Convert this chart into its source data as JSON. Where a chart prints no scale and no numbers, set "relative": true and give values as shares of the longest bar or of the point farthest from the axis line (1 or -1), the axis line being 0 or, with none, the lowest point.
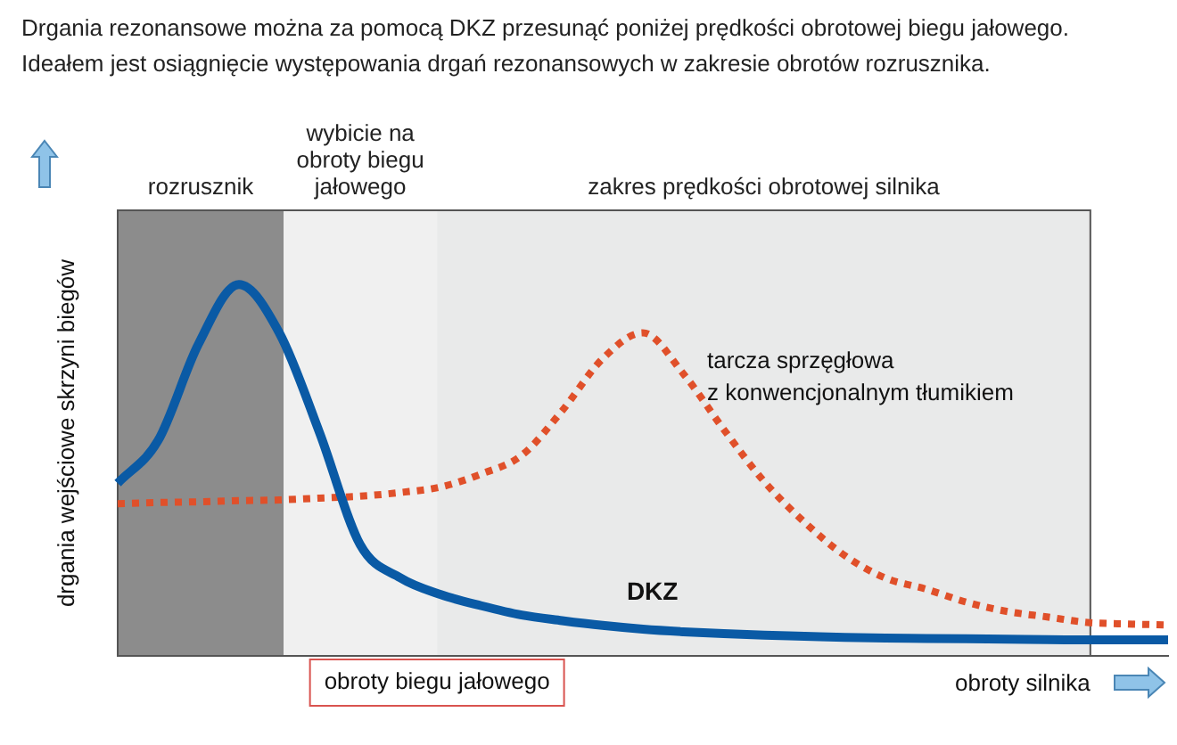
{
  "chart_data": {
    "type": "line",
    "title": "Drgania rezonansowe można za pomocą DKZ przesunąć poniżej prędkości obrotowej biegu jałowego.",
    "subtitle": "Ideałem jest osiągnięcie występowania drgań rezonansowych w zakresie obrotów rozrusznika.",
    "xlabel": "obroty silnika",
    "ylabel": "drgania wejściowe skrzyni biegów",
    "relative": true,
    "legend": false,
    "categories": [
      null,
      null,
      null,
      null,
      null,
      null,
      null,
      null,
      null,
      null,
      null,
      null,
      null,
      null,
      null,
      null,
      null,
      null,
      null,
      null,
      null,
      null,
      null,
      null,
      null,
      null,
      null
    ],
    "series": [
      {
        "name": "DKZ",
        "color": "#0a5aa5",
        "line_style": "solid",
        "values": [
          0.465,
          0.58,
          0.84,
          1,
          0.87,
          0.6,
          0.3,
          0.21,
          0.165,
          0.135,
          0.11,
          0.095,
          0.082,
          0.072,
          0.065,
          0.06,
          0.056,
          0.053,
          0.05,
          0.048,
          0.047,
          0.046,
          0.045,
          0.044,
          0.043,
          0.043,
          0.043
        ]
      },
      {
        "name": "tarcza sprzęgłowa z konwencjonalnym tłumikiem",
        "color": "#e0502a",
        "line_style": "dotted",
        "values": [
          0.41,
          0.413,
          0.415,
          0.418,
          0.42,
          0.425,
          0.43,
          0.44,
          0.455,
          0.49,
          0.54,
          0.66,
          0.8,
          0.87,
          0.76,
          0.61,
          0.47,
          0.36,
          0.27,
          0.21,
          0.18,
          0.145,
          0.12,
          0.105,
          0.09,
          0.086,
          0.083
        ]
      }
    ],
    "annotations": [
      "rozrusznik",
      "wybicie na obroty biegu jałowego",
      "zakres prędkości obrotowej silnika",
      "obroty biegu jałowego"
    ]
  }
}
